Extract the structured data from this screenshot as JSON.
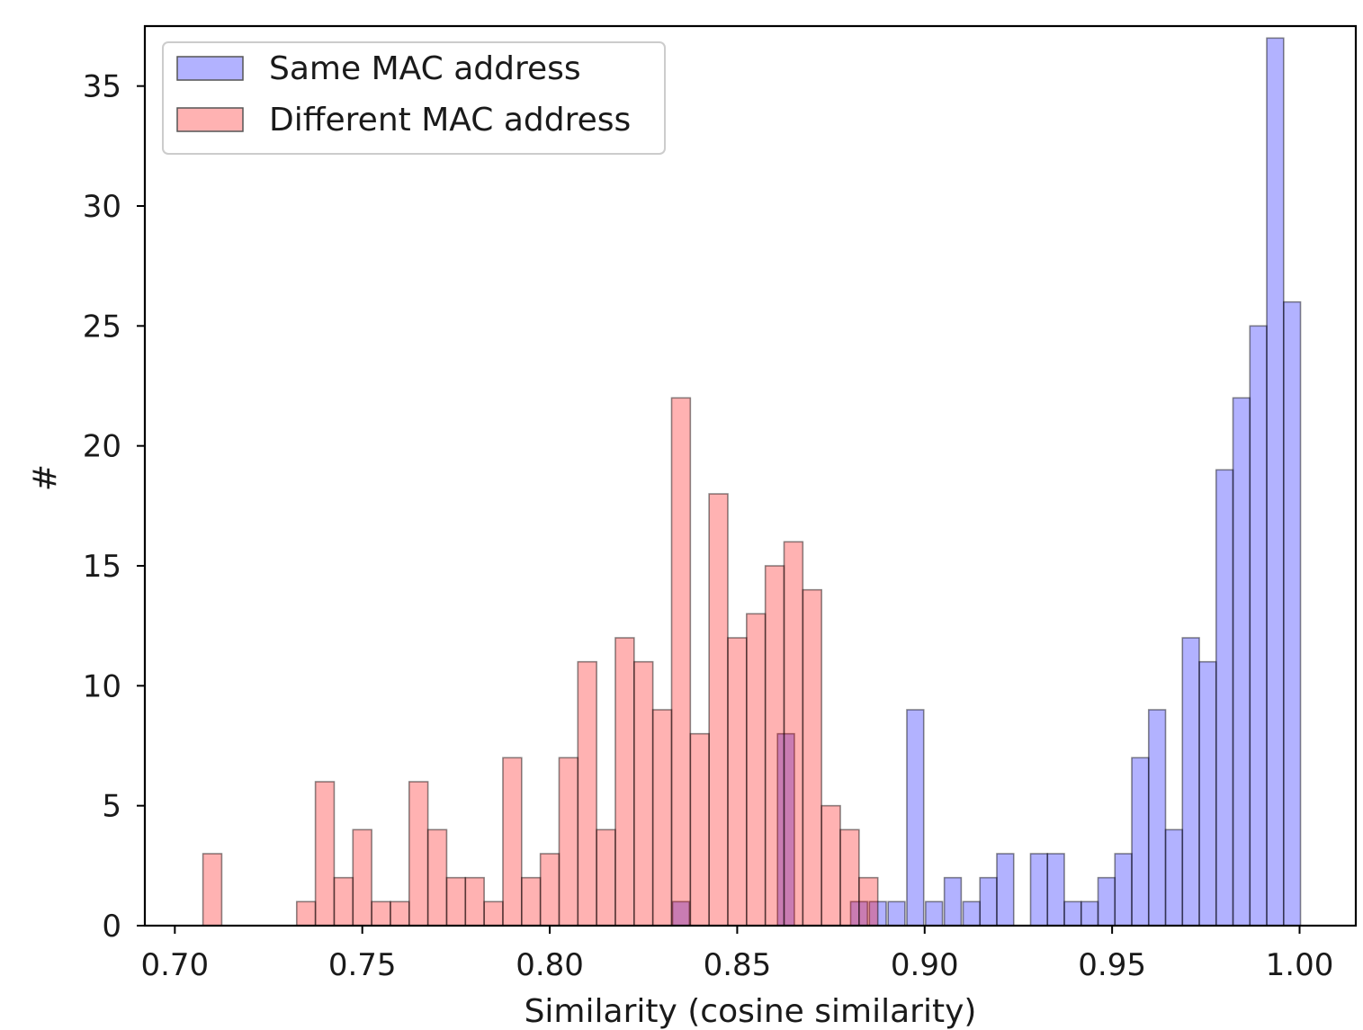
{
  "chart_data": {
    "type": "bar",
    "title": "",
    "xlabel": "Similarity (cosine similarity)",
    "ylabel": "#",
    "xlim": [
      0.692,
      1.015
    ],
    "ylim": [
      0,
      37.5
    ],
    "xticks": [
      "0.70",
      "0.75",
      "0.80",
      "0.85",
      "0.90",
      "0.95",
      "1.00"
    ],
    "yticks": [
      "0",
      "5",
      "10",
      "15",
      "20",
      "25",
      "30",
      "35"
    ],
    "grid": false,
    "legend_position": "upper-left",
    "series": [
      {
        "name": "Same MAC address",
        "color": "#0000ff",
        "alpha": 0.3,
        "bin_width": 0.0045,
        "bins": [
          {
            "x": 0.835,
            "count": 1
          },
          {
            "x": 0.863,
            "count": 8
          },
          {
            "x": 0.8825,
            "count": 1
          },
          {
            "x": 0.8875,
            "count": 1
          },
          {
            "x": 0.8925,
            "count": 1
          },
          {
            "x": 0.8975,
            "count": 9
          },
          {
            "x": 0.9025,
            "count": 1
          },
          {
            "x": 0.9075,
            "count": 2
          },
          {
            "x": 0.9125,
            "count": 1
          },
          {
            "x": 0.917,
            "count": 2
          },
          {
            "x": 0.9215,
            "count": 3
          },
          {
            "x": 0.9305,
            "count": 3
          },
          {
            "x": 0.935,
            "count": 3
          },
          {
            "x": 0.9395,
            "count": 1
          },
          {
            "x": 0.944,
            "count": 1
          },
          {
            "x": 0.9485,
            "count": 2
          },
          {
            "x": 0.953,
            "count": 3
          },
          {
            "x": 0.9575,
            "count": 7
          },
          {
            "x": 0.962,
            "count": 9
          },
          {
            "x": 0.9665,
            "count": 4
          },
          {
            "x": 0.971,
            "count": 12
          },
          {
            "x": 0.9755,
            "count": 11
          },
          {
            "x": 0.98,
            "count": 19
          },
          {
            "x": 0.9845,
            "count": 22
          },
          {
            "x": 0.989,
            "count": 25
          },
          {
            "x": 0.9935,
            "count": 37
          },
          {
            "x": 0.998,
            "count": 26
          }
        ]
      },
      {
        "name": "Different MAC address",
        "color": "#ff0000",
        "alpha": 0.3,
        "bin_width": 0.005,
        "bins": [
          {
            "x": 0.71,
            "count": 3
          },
          {
            "x": 0.735,
            "count": 1
          },
          {
            "x": 0.74,
            "count": 6
          },
          {
            "x": 0.745,
            "count": 2
          },
          {
            "x": 0.75,
            "count": 4
          },
          {
            "x": 0.755,
            "count": 1
          },
          {
            "x": 0.76,
            "count": 1
          },
          {
            "x": 0.765,
            "count": 6
          },
          {
            "x": 0.77,
            "count": 4
          },
          {
            "x": 0.775,
            "count": 2
          },
          {
            "x": 0.78,
            "count": 2
          },
          {
            "x": 0.785,
            "count": 1
          },
          {
            "x": 0.79,
            "count": 7
          },
          {
            "x": 0.795,
            "count": 2
          },
          {
            "x": 0.8,
            "count": 3
          },
          {
            "x": 0.805,
            "count": 7
          },
          {
            "x": 0.81,
            "count": 11
          },
          {
            "x": 0.815,
            "count": 4
          },
          {
            "x": 0.82,
            "count": 12
          },
          {
            "x": 0.825,
            "count": 11
          },
          {
            "x": 0.83,
            "count": 9
          },
          {
            "x": 0.835,
            "count": 22
          },
          {
            "x": 0.84,
            "count": 8
          },
          {
            "x": 0.845,
            "count": 18
          },
          {
            "x": 0.85,
            "count": 12
          },
          {
            "x": 0.855,
            "count": 13
          },
          {
            "x": 0.86,
            "count": 15
          },
          {
            "x": 0.865,
            "count": 16
          },
          {
            "x": 0.87,
            "count": 14
          },
          {
            "x": 0.875,
            "count": 5
          },
          {
            "x": 0.88,
            "count": 4
          },
          {
            "x": 0.885,
            "count": 2
          }
        ]
      }
    ]
  }
}
